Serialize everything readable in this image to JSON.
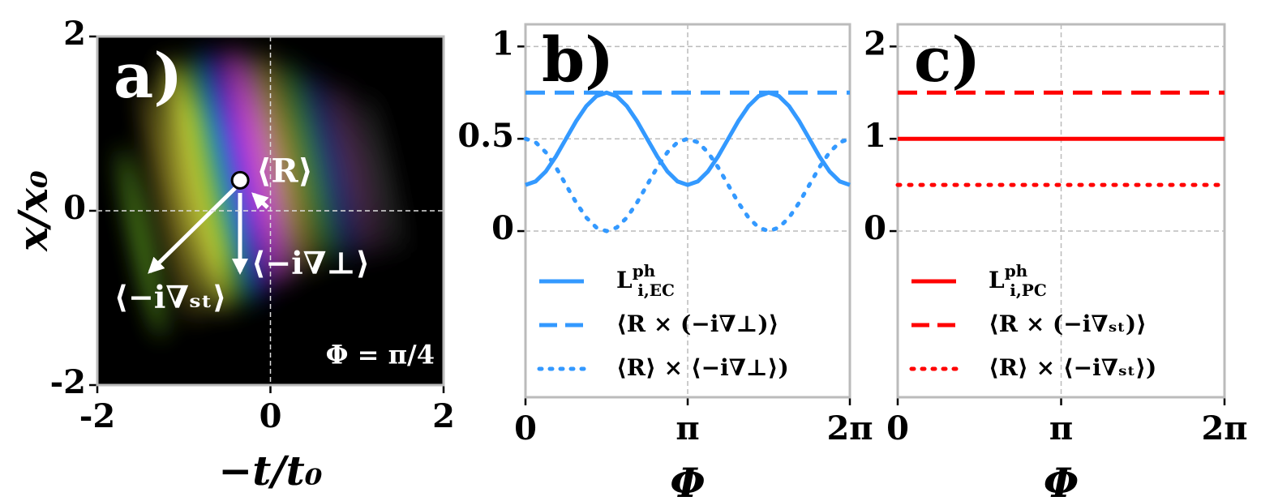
{
  "chart_data": [
    {
      "type": "image",
      "panel_label": "a)",
      "xlabel": "−t/t₀",
      "ylabel": "x/x₀",
      "xlim": [
        -2,
        2
      ],
      "ylim": [
        -2,
        2
      ],
      "xticks": [
        -2,
        0,
        2
      ],
      "yticks": [
        -2,
        0,
        2
      ],
      "grid": true,
      "marker": {
        "x": -0.35,
        "y": 0.35,
        "label": "⟨R⟩"
      },
      "annotations": [
        "⟨−i∇⊥⟩",
        "⟨−i∇ₛₜ⟩",
        "Φ = π/4"
      ]
    },
    {
      "type": "line",
      "panel_label": "b)",
      "xlabel": "Φ",
      "x": [
        0,
        0.196,
        0.393,
        0.589,
        0.785,
        0.982,
        1.178,
        1.374,
        1.571,
        1.767,
        1.963,
        2.16,
        2.356,
        2.553,
        2.749,
        2.945,
        3.142,
        3.338,
        3.534,
        3.73,
        3.927,
        4.123,
        4.32,
        4.516,
        4.712,
        4.909,
        5.105,
        5.301,
        5.498,
        5.694,
        5.89,
        6.087,
        6.283
      ],
      "xlim": [
        0,
        6.283
      ],
      "ylim": [
        -0.9,
        1.12
      ],
      "xticks": [
        0,
        {
          "value": 3.142,
          "label": "π"
        },
        {
          "value": 6.283,
          "label": "2π"
        }
      ],
      "yticks": [
        0,
        0.5,
        1
      ],
      "grid": true,
      "series": [
        {
          "name": "L",
          "name_sup": "ph",
          "name_sub": "i,EC",
          "color": "#3399ff",
          "style": "solid",
          "values": [
            0.25,
            0.269,
            0.323,
            0.404,
            0.5,
            0.596,
            0.677,
            0.731,
            0.75,
            0.731,
            0.677,
            0.596,
            0.5,
            0.404,
            0.323,
            0.269,
            0.25,
            0.269,
            0.323,
            0.404,
            0.5,
            0.596,
            0.677,
            0.731,
            0.75,
            0.731,
            0.677,
            0.596,
            0.5,
            0.404,
            0.323,
            0.269,
            0.25
          ]
        },
        {
          "name": "⟨R × (−i∇⊥)⟩",
          "color": "#3399ff",
          "style": "dashed",
          "values": [
            0.75,
            0.75,
            0.75,
            0.75,
            0.75,
            0.75,
            0.75,
            0.75,
            0.75,
            0.75,
            0.75,
            0.75,
            0.75,
            0.75,
            0.75,
            0.75,
            0.75,
            0.75,
            0.75,
            0.75,
            0.75,
            0.75,
            0.75,
            0.75,
            0.75,
            0.75,
            0.75,
            0.75,
            0.75,
            0.75,
            0.75,
            0.75,
            0.75
          ]
        },
        {
          "name": "⟨R⟩ × ⟨−i∇⊥⟩)",
          "color": "#3399ff",
          "style": "dotted",
          "values": [
            0.5,
            0.481,
            0.427,
            0.346,
            0.25,
            0.154,
            0.073,
            0.019,
            0,
            0.019,
            0.073,
            0.154,
            0.25,
            0.346,
            0.427,
            0.481,
            0.5,
            0.481,
            0.427,
            0.346,
            0.25,
            0.154,
            0.073,
            0.019,
            0,
            0.019,
            0.073,
            0.154,
            0.25,
            0.346,
            0.427,
            0.481,
            0.5
          ]
        }
      ]
    },
    {
      "type": "line",
      "panel_label": "c)",
      "xlabel": "Φ",
      "x": [
        0,
        6.283
      ],
      "xlim": [
        0,
        6.283
      ],
      "ylim": [
        -1.8,
        2.24
      ],
      "xticks": [
        0,
        {
          "value": 3.142,
          "label": "π"
        },
        {
          "value": 6.283,
          "label": "2π"
        }
      ],
      "yticks": [
        0,
        1,
        2
      ],
      "grid": true,
      "series": [
        {
          "name": "L",
          "name_sup": "ph",
          "name_sub": "i,PC",
          "color": "#ff0000",
          "style": "solid",
          "values": [
            1,
            1
          ]
        },
        {
          "name": "⟨R × (−i∇ₛₜ)⟩",
          "color": "#ff0000",
          "style": "dashed",
          "values": [
            1.5,
            1.5
          ]
        },
        {
          "name": "⟨R⟩ × ⟨−i∇ₛₜ⟩)",
          "color": "#ff0000",
          "style": "dotted",
          "values": [
            0.5,
            0.5
          ]
        }
      ]
    }
  ]
}
